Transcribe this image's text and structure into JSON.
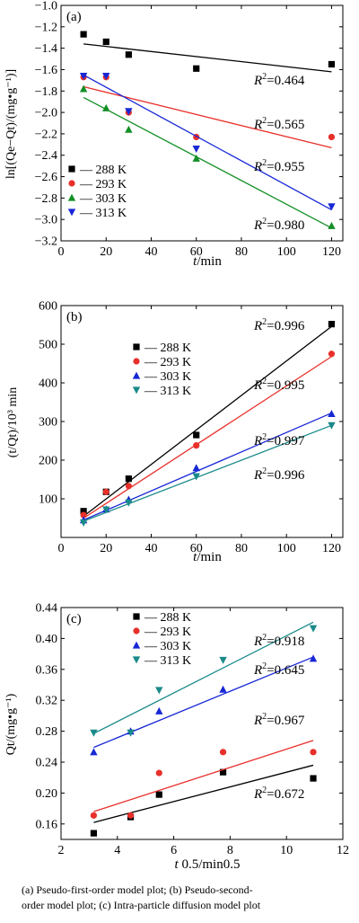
{
  "caption": {
    "line1": "(a) Pseudo-first-order model plot; (b) Pseudo-second-",
    "line2": "order model plot; (c) Intra-particle diffusion model plot"
  },
  "chart_data": [
    {
      "type": "scatter",
      "panel_label": "(a)",
      "xlabel": {
        "italic": "t",
        "rest": "/min"
      },
      "ylabel": "ln[(Qe−Qt)/(mg•g⁻¹)]",
      "xlim": [
        0,
        125
      ],
      "ylim": [
        -3.2,
        -1.0
      ],
      "xticks": [
        0,
        20,
        40,
        60,
        80,
        100,
        120
      ],
      "yticks": [
        -3.2,
        -3.0,
        -2.8,
        -2.6,
        -2.4,
        -2.2,
        -2.0,
        -1.8,
        -1.6,
        -1.4,
        -1.2,
        -1.0
      ],
      "ytick_labels": [
        "−3.2",
        "−3.0",
        "−2.8",
        "−2.6",
        "−2.4",
        "−2.2",
        "−2.0",
        "−1.8",
        "−1.6",
        "−1.4",
        "−1.2",
        "−1.0"
      ],
      "legend_position": "lower-left",
      "series": [
        {
          "name": "288 K",
          "legend_label": "— 288 K",
          "color": "#000000",
          "marker": "square",
          "x": [
            10,
            20,
            30,
            60,
            120
          ],
          "y": [
            -1.27,
            -1.34,
            -1.46,
            -1.59,
            -1.55
          ],
          "fit": [
            [
              10,
              -1.36
            ],
            [
              120,
              -1.62
            ]
          ],
          "r2": "0.464"
        },
        {
          "name": "293 K",
          "legend_label": "— 293 K",
          "color": "#e8302a",
          "marker": "circle",
          "x": [
            10,
            20,
            30,
            60,
            120
          ],
          "y": [
            -1.67,
            -1.67,
            -2.0,
            -2.23,
            -2.23
          ],
          "fit": [
            [
              10,
              -1.76
            ],
            [
              120,
              -2.33
            ]
          ],
          "r2": "0.565"
        },
        {
          "name": "303 K",
          "legend_label": "— 303 K",
          "color": "#138f25",
          "marker": "triangle-up",
          "x": [
            10,
            20,
            30,
            60,
            120
          ],
          "y": [
            -1.78,
            -1.96,
            -2.16,
            -2.43,
            -3.06
          ],
          "fit": [
            [
              10,
              -1.86
            ],
            [
              120,
              -3.08
            ]
          ],
          "r2": "0.980"
        },
        {
          "name": "313 K",
          "legend_label": "— 313 K",
          "color": "#1727d6",
          "marker": "triangle-down",
          "x": [
            10,
            20,
            30,
            60,
            120
          ],
          "y": [
            -1.66,
            -1.66,
            -1.99,
            -2.34,
            -2.88
          ],
          "fit": [
            [
              10,
              -1.65
            ],
            [
              120,
              -2.91
            ]
          ],
          "r2": "0.955"
        }
      ]
    },
    {
      "type": "scatter",
      "panel_label": "(b)",
      "xlabel": {
        "italic": "t",
        "rest": "/min"
      },
      "ylabel": "(t/Qt)/10³ min",
      "xlim": [
        0,
        125
      ],
      "ylim": [
        0,
        600
      ],
      "xticks": [
        0,
        20,
        40,
        60,
        80,
        100,
        120
      ],
      "yticks": [
        100,
        200,
        300,
        400,
        500,
        600
      ],
      "ytick_labels": [
        "100",
        "200",
        "300",
        "400",
        "500",
        "600"
      ],
      "legend_position": "upper-left",
      "series": [
        {
          "name": "288 K",
          "legend_label": "— 288 K",
          "color": "#000000",
          "marker": "square",
          "x": [
            10,
            20,
            30,
            60,
            120
          ],
          "y": [
            68,
            118,
            152,
            265,
            552
          ],
          "fit": [
            [
              10,
              55
            ],
            [
              120,
              546
            ]
          ],
          "r2": "0.996"
        },
        {
          "name": "293 K",
          "legend_label": "— 293 K",
          "color": "#e8302a",
          "marker": "circle",
          "x": [
            10,
            20,
            30,
            60,
            120
          ],
          "y": [
            58,
            118,
            133,
            238,
            475
          ],
          "fit": [
            [
              10,
              50
            ],
            [
              120,
              468
            ]
          ],
          "r2": "0.995"
        },
        {
          "name": "303 K",
          "legend_label": "— 303 K",
          "color": "#1727d6",
          "marker": "triangle-up",
          "x": [
            10,
            20,
            30,
            60,
            120
          ],
          "y": [
            45,
            73,
            98,
            180,
            320
          ],
          "fit": [
            [
              10,
              45
            ],
            [
              120,
              322
            ]
          ],
          "r2": "0.997"
        },
        {
          "name": "313 K",
          "legend_label": "— 313 K",
          "color": "#1a8a8a",
          "marker": "triangle-down",
          "x": [
            10,
            20,
            30,
            60,
            120
          ],
          "y": [
            38,
            72,
            90,
            158,
            290
          ],
          "fit": [
            [
              10,
              42
            ],
            [
              120,
              290
            ]
          ],
          "r2": "0.996"
        }
      ]
    },
    {
      "type": "scatter",
      "panel_label": "(c)",
      "xlabel": {
        "italic": "t",
        "rest": " 0.5/min0.5"
      },
      "ylabel": "Qt/(mg•g⁻¹)",
      "xlim": [
        2,
        12
      ],
      "ylim": [
        0.14,
        0.44
      ],
      "xticks": [
        2,
        4,
        6,
        8,
        10,
        12
      ],
      "yticks": [
        0.16,
        0.2,
        0.24,
        0.28,
        0.32,
        0.36,
        0.4,
        0.44
      ],
      "ytick_labels": [
        "0.16",
        "0.20",
        "0.24",
        "0.28",
        "0.32",
        "0.36",
        "0.40",
        "0.44"
      ],
      "legend_position": "upper-left",
      "series": [
        {
          "name": "288 K",
          "legend_label": "— 288 K",
          "color": "#000000",
          "marker": "square",
          "x": [
            3.16,
            4.47,
            5.48,
            7.75,
            10.95
          ],
          "y": [
            0.148,
            0.169,
            0.198,
            0.227,
            0.219
          ],
          "fit": [
            [
              3.16,
              0.162
            ],
            [
              10.95,
              0.236
            ]
          ],
          "r2": "0.645"
        },
        {
          "name": "293 K",
          "legend_label": "— 293 K",
          "color": "#e8302a",
          "marker": "circle",
          "x": [
            3.16,
            4.47,
            5.48,
            7.75,
            10.95
          ],
          "y": [
            0.171,
            0.171,
            0.226,
            0.253,
            0.253
          ],
          "fit": [
            [
              3.16,
              0.176
            ],
            [
              10.95,
              0.268
            ]
          ],
          "r2": "0.672"
        },
        {
          "name": "303 K",
          "legend_label": "— 303 K",
          "color": "#1727d6",
          "marker": "triangle-up",
          "x": [
            3.16,
            4.47,
            5.48,
            7.75,
            10.95
          ],
          "y": [
            0.253,
            0.28,
            0.306,
            0.334,
            0.374
          ],
          "fit": [
            [
              3.16,
              0.259
            ],
            [
              10.95,
              0.376
            ]
          ],
          "r2": "0.967"
        },
        {
          "name": "313 K",
          "legend_label": "— 313 K",
          "color": "#1a8a8a",
          "marker": "triangle-down",
          "x": [
            3.16,
            4.47,
            5.48,
            7.75,
            10.95
          ],
          "y": [
            0.278,
            0.278,
            0.333,
            0.372,
            0.413
          ],
          "fit": [
            [
              3.16,
              0.277
            ],
            [
              10.95,
              0.421
            ]
          ],
          "r2": "0.918"
        }
      ]
    }
  ]
}
